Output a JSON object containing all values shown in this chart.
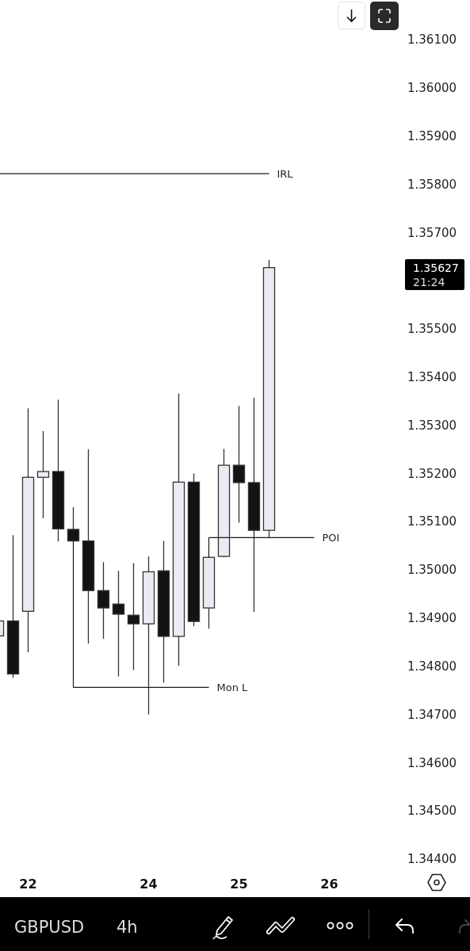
{
  "chart_data": {
    "type": "candlestick",
    "categories": [
      null,
      null,
      "22",
      null,
      null,
      null,
      null,
      null,
      null,
      null,
      "24",
      null,
      null,
      null,
      null,
      null,
      "25",
      null,
      null,
      null,
      null,
      null,
      "26",
      null,
      null,
      null,
      null
    ],
    "ohlc": [
      [
        1.34863,
        1.34894,
        1.34863,
        1.34894
      ],
      [
        1.34894,
        1.35072,
        1.34776,
        1.34784
      ],
      [
        1.34914,
        1.35335,
        1.34829,
        1.35192
      ],
      [
        1.35192,
        1.35288,
        1.35107,
        1.35204
      ],
      [
        1.35204,
        1.35353,
        1.35059,
        1.35085
      ],
      [
        1.35084,
        1.3513,
        1.35058,
        1.3506
      ],
      [
        1.3506,
        1.3525,
        1.34847,
        1.34957
      ],
      [
        1.34957,
        1.35016,
        1.34857,
        1.34921
      ],
      [
        1.34929,
        1.34998,
        1.34779,
        1.34908
      ],
      [
        1.34906,
        1.35014,
        1.34792,
        1.34888
      ],
      [
        1.34888,
        1.35028,
        1.347,
        1.34996
      ],
      [
        1.34998,
        1.3506,
        1.34766,
        1.34862
      ],
      [
        1.34862,
        1.35366,
        1.34801,
        1.35182
      ],
      [
        1.35182,
        1.352,
        1.34883,
        1.34893
      ],
      [
        1.34921,
        1.35028,
        1.34878,
        1.35026
      ],
      [
        1.35028,
        1.35251,
        1.35026,
        1.35217
      ],
      [
        1.35217,
        1.3534,
        1.35098,
        1.35181
      ],
      [
        1.35181,
        1.35357,
        1.34913,
        1.35082
      ],
      [
        1.35082,
        1.35643,
        1.35067,
        1.35627
      ],
      null,
      null,
      null,
      null,
      null,
      null,
      null,
      null
    ],
    "colors": [
      "#ebebf3",
      "#131313",
      "#ebebf3",
      "#ebebf3",
      "#131313",
      "#131313",
      "#131313",
      "#131313",
      "#131313",
      "#131313",
      "#ebebf3",
      "#131313",
      "#ebebf3",
      "#131313",
      "#ebebf3",
      "#ebebf3",
      "#131313",
      "#131313",
      "#ebebf3",
      null,
      null,
      null,
      null,
      null,
      null,
      null,
      null
    ],
    "ylim": [
      1.344,
      1.361
    ],
    "yticks": [
      {
        "value": 1.344,
        "label": "1.34400"
      },
      {
        "value": 1.345,
        "label": "1.34500"
      },
      {
        "value": 1.346,
        "label": "1.34600"
      },
      {
        "value": 1.347,
        "label": "1.34700"
      },
      {
        "value": 1.348,
        "label": "1.34800"
      },
      {
        "value": 1.349,
        "label": "1.34900"
      },
      {
        "value": 1.35,
        "label": "1.35000"
      },
      {
        "value": 1.351,
        "label": "1.35100"
      },
      {
        "value": 1.352,
        "label": "1.35200"
      },
      {
        "value": 1.353,
        "label": "1.35300"
      },
      {
        "value": 1.354,
        "label": "1.35400"
      },
      {
        "value": 1.355,
        "label": "1.35500"
      },
      {
        "value": 1.357,
        "label": "1.35700"
      },
      {
        "value": 1.358,
        "label": "1.35800"
      },
      {
        "value": 1.359,
        "label": "1.35900"
      },
      {
        "value": 1.36,
        "label": "1.36000"
      },
      {
        "value": 1.361,
        "label": "1.36100"
      }
    ],
    "ref_lines": [
      {
        "axis": "y",
        "value": 1.35822,
        "label": "IRL"
      },
      {
        "axis": "y",
        "value": 1.34756,
        "label": "Mon L"
      },
      {
        "axis": "y",
        "value": 1.35067,
        "label": "POI"
      }
    ],
    "annotations": [
      "1.35627",
      "21:24",
      "GBPUSD",
      "4h"
    ]
  }
}
